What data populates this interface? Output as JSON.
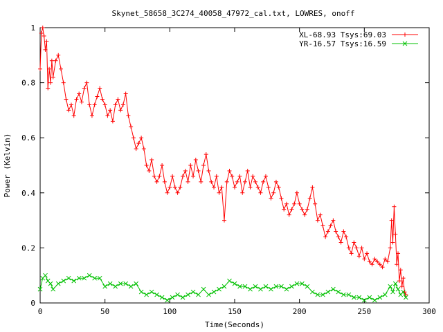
{
  "chart_data": {
    "type": "line",
    "title": "Skynet_58658_3C274_40058_47972_cal.txt, LOWRES, onoff",
    "xlabel": "Time(Seconds)",
    "ylabel": "Power (Kelvin)",
    "xlim": [
      0,
      300
    ],
    "ylim": [
      0,
      1
    ],
    "xticks": [
      0,
      50,
      100,
      150,
      200,
      250,
      300
    ],
    "yticks": [
      0,
      0.2,
      0.4,
      0.6,
      0.8,
      1
    ],
    "xtick_labels": [
      "0",
      "50",
      "100",
      "150",
      "200",
      "250",
      "300"
    ],
    "ytick_labels": [
      "0",
      "0.2",
      "0.4",
      "0.6",
      "0.8",
      "1"
    ],
    "grid": false,
    "legend_position": "top-right",
    "series": [
      {
        "name": "XL-68.93 Tsys:69.03",
        "color": "#ff0000",
        "marker": "plus",
        "x": [
          0,
          1,
          2,
          3,
          4,
          5,
          6,
          7,
          8,
          9,
          10,
          12,
          14,
          16,
          18,
          20,
          22,
          24,
          26,
          28,
          30,
          32,
          34,
          36,
          38,
          40,
          42,
          44,
          46,
          48,
          50,
          52,
          54,
          56,
          58,
          60,
          62,
          64,
          66,
          68,
          70,
          72,
          74,
          76,
          78,
          80,
          82,
          84,
          86,
          88,
          90,
          92,
          94,
          96,
          98,
          100,
          102,
          104,
          106,
          108,
          110,
          112,
          114,
          116,
          118,
          120,
          122,
          124,
          126,
          128,
          130,
          132,
          134,
          136,
          138,
          140,
          142,
          144,
          146,
          148,
          150,
          152,
          154,
          156,
          158,
          160,
          162,
          164,
          166,
          168,
          170,
          172,
          174,
          176,
          178,
          180,
          182,
          184,
          186,
          188,
          190,
          192,
          194,
          196,
          198,
          200,
          202,
          204,
          206,
          208,
          210,
          212,
          214,
          216,
          218,
          220,
          222,
          224,
          226,
          228,
          230,
          232,
          234,
          236,
          238,
          240,
          242,
          244,
          246,
          248,
          250,
          252,
          254,
          256,
          258,
          260,
          262,
          264,
          266,
          268,
          270,
          271,
          272,
          273,
          274,
          275,
          276,
          277,
          278,
          279,
          280,
          281,
          282
        ],
        "y": [
          0.85,
          0.98,
          1.0,
          0.97,
          0.92,
          0.95,
          0.78,
          0.85,
          0.8,
          0.88,
          0.82,
          0.88,
          0.9,
          0.85,
          0.8,
          0.74,
          0.7,
          0.72,
          0.68,
          0.74,
          0.76,
          0.73,
          0.78,
          0.8,
          0.72,
          0.68,
          0.72,
          0.75,
          0.78,
          0.74,
          0.72,
          0.68,
          0.7,
          0.66,
          0.72,
          0.74,
          0.7,
          0.72,
          0.76,
          0.68,
          0.64,
          0.6,
          0.56,
          0.58,
          0.6,
          0.56,
          0.5,
          0.48,
          0.52,
          0.46,
          0.44,
          0.46,
          0.5,
          0.44,
          0.4,
          0.42,
          0.46,
          0.42,
          0.4,
          0.42,
          0.46,
          0.48,
          0.44,
          0.5,
          0.46,
          0.52,
          0.48,
          0.44,
          0.5,
          0.54,
          0.48,
          0.44,
          0.42,
          0.46,
          0.4,
          0.42,
          0.3,
          0.44,
          0.48,
          0.46,
          0.42,
          0.44,
          0.46,
          0.4,
          0.44,
          0.48,
          0.42,
          0.46,
          0.44,
          0.42,
          0.4,
          0.44,
          0.46,
          0.42,
          0.38,
          0.4,
          0.44,
          0.42,
          0.38,
          0.34,
          0.36,
          0.32,
          0.34,
          0.36,
          0.4,
          0.36,
          0.34,
          0.32,
          0.34,
          0.38,
          0.42,
          0.36,
          0.3,
          0.32,
          0.28,
          0.24,
          0.26,
          0.28,
          0.3,
          0.26,
          0.24,
          0.22,
          0.26,
          0.24,
          0.2,
          0.18,
          0.22,
          0.2,
          0.17,
          0.2,
          0.16,
          0.18,
          0.15,
          0.14,
          0.16,
          0.15,
          0.14,
          0.13,
          0.16,
          0.15,
          0.2,
          0.3,
          0.22,
          0.35,
          0.25,
          0.14,
          0.18,
          0.08,
          0.12,
          0.06,
          0.09,
          0.04,
          0.03
        ]
      },
      {
        "name": "YR-16.57 Tsys:16.59",
        "color": "#00c000",
        "marker": "cross",
        "x": [
          0,
          2,
          4,
          6,
          8,
          10,
          14,
          18,
          22,
          26,
          30,
          34,
          38,
          42,
          46,
          50,
          54,
          58,
          62,
          66,
          70,
          74,
          78,
          82,
          86,
          90,
          94,
          98,
          102,
          106,
          110,
          114,
          118,
          122,
          126,
          130,
          134,
          138,
          142,
          146,
          150,
          154,
          158,
          162,
          166,
          170,
          174,
          178,
          182,
          186,
          190,
          194,
          198,
          202,
          206,
          210,
          214,
          218,
          222,
          226,
          230,
          234,
          238,
          242,
          246,
          250,
          254,
          258,
          262,
          266,
          270,
          272,
          274,
          276,
          278,
          280,
          282
        ],
        "y": [
          0.05,
          0.09,
          0.1,
          0.08,
          0.07,
          0.05,
          0.07,
          0.08,
          0.09,
          0.08,
          0.09,
          0.09,
          0.1,
          0.09,
          0.09,
          0.06,
          0.07,
          0.06,
          0.07,
          0.07,
          0.06,
          0.07,
          0.04,
          0.03,
          0.04,
          0.03,
          0.02,
          0.01,
          0.02,
          0.03,
          0.02,
          0.03,
          0.04,
          0.03,
          0.05,
          0.03,
          0.04,
          0.05,
          0.06,
          0.08,
          0.07,
          0.06,
          0.06,
          0.05,
          0.06,
          0.05,
          0.06,
          0.05,
          0.06,
          0.06,
          0.05,
          0.06,
          0.07,
          0.07,
          0.06,
          0.04,
          0.03,
          0.03,
          0.04,
          0.05,
          0.04,
          0.03,
          0.03,
          0.02,
          0.02,
          0.01,
          0.02,
          0.01,
          0.02,
          0.03,
          0.06,
          0.04,
          0.07,
          0.05,
          0.03,
          0.04,
          0.02
        ]
      }
    ]
  }
}
